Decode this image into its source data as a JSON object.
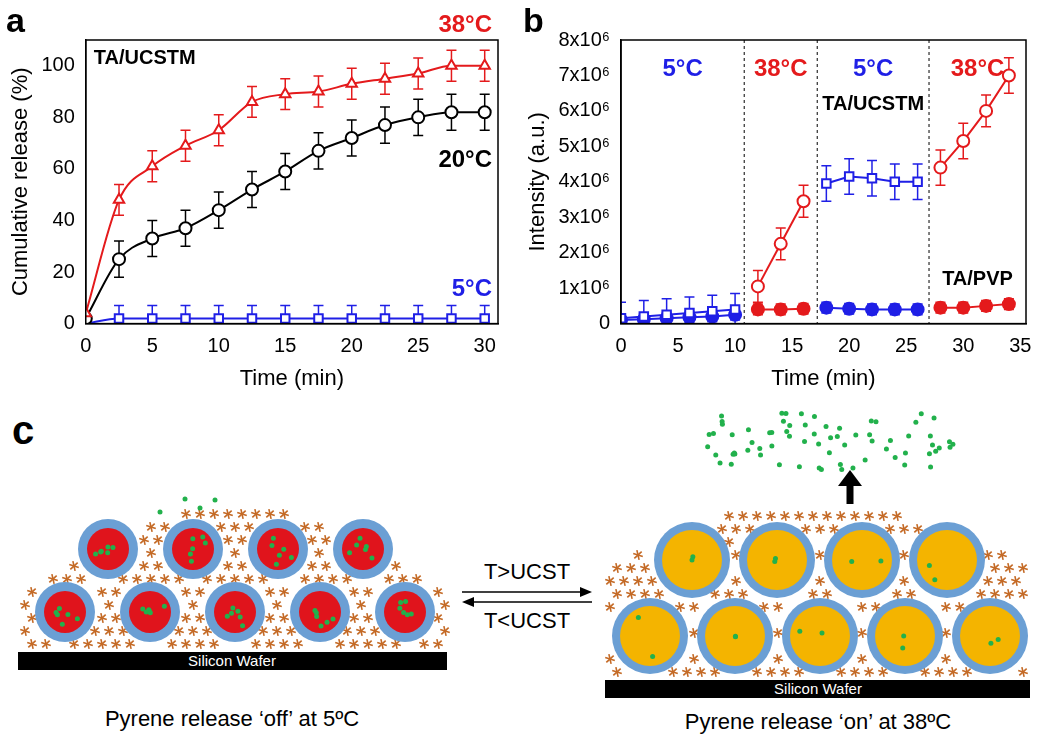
{
  "chart_data": [
    {
      "type": "line",
      "panel": "a",
      "title": "TA/UCSTM",
      "x_label": "Time (min)",
      "y_label": "Cumulative release (%)",
      "xlim": [
        0,
        31
      ],
      "ylim": [
        0,
        110
      ],
      "xticks": [
        0,
        5,
        10,
        15,
        20,
        25,
        30
      ],
      "yticks": [
        0,
        20,
        40,
        60,
        80,
        100
      ],
      "grid": false,
      "x": [
        0,
        2.5,
        5,
        7.5,
        10,
        12.5,
        15,
        17.5,
        20,
        22.5,
        25,
        27.5,
        30
      ],
      "series": [
        {
          "name": "38°C",
          "color": "#e41a1c",
          "marker": "open-triangle",
          "line_style": "smooth",
          "values": [
            4,
            48,
            61,
            69,
            75,
            86,
            89,
            90,
            93,
            95,
            97,
            100,
            100
          ],
          "errors": [
            0,
            6,
            6,
            6,
            6,
            6,
            6,
            6,
            6,
            6,
            6,
            6,
            6
          ]
        },
        {
          "name": "20°C",
          "color": "#000000",
          "marker": "open-circle",
          "line_style": "smooth",
          "values": [
            2,
            25,
            33,
            37,
            44,
            52,
            59,
            67,
            72,
            77,
            80,
            82,
            82
          ],
          "errors": [
            0,
            7,
            7,
            7,
            7,
            7,
            7,
            7,
            7,
            7,
            7,
            7,
            7
          ]
        },
        {
          "name": "5°C",
          "color": "#1f1fe6",
          "marker": "open-square",
          "line_style": "smooth",
          "values": [
            0,
            2,
            2,
            2,
            2,
            2,
            2,
            2,
            2,
            2,
            2,
            2,
            2
          ],
          "errors": [
            0,
            5,
            5,
            5,
            5,
            5,
            5,
            5,
            5,
            5,
            5,
            5,
            5
          ]
        }
      ]
    },
    {
      "type": "line",
      "panel": "b",
      "x_label": "Time (min)",
      "y_label": "Intensity (a.u.)",
      "xlim": [
        0,
        35.5
      ],
      "ylim": [
        0,
        8000000
      ],
      "xticks": [
        0,
        5,
        10,
        15,
        20,
        25,
        30,
        35
      ],
      "yticks": [
        0,
        {
          "value": 1000000,
          "label": "1x10⁶"
        },
        {
          "value": 2000000,
          "label": "2x10⁶"
        },
        {
          "value": 3000000,
          "label": "3x10⁶"
        },
        {
          "value": 4000000,
          "label": "4x10⁶"
        },
        {
          "value": 5000000,
          "label": "5x10⁶"
        },
        {
          "value": 6000000,
          "label": "6x10⁶"
        },
        {
          "value": 7000000,
          "label": "7x10⁶"
        },
        {
          "value": 8000000,
          "label": "8x10⁶"
        }
      ],
      "grid": false,
      "phases": [
        {
          "label": "5°C",
          "color": "#1f1fe6",
          "end": 10.8
        },
        {
          "label": "38°C",
          "color": "#e41a1c",
          "end": 17.2
        },
        {
          "label": "5°C",
          "color": "#1f1fe6",
          "end": 27
        },
        {
          "label": "38°C",
          "color": "#e41a1c",
          "end": 35.5
        }
      ],
      "series": [
        {
          "name": "TA/UCSTM",
          "color": "#1f1fe6",
          "marker": "open-square",
          "line_style": "solid",
          "x": [
            0,
            2,
            4,
            6,
            8,
            10
          ],
          "values": [
            150000,
            200000,
            250000,
            300000,
            350000,
            400000
          ],
          "errors": [
            450000,
            450000,
            450000,
            450000,
            450000,
            450000
          ]
        },
        {
          "name": "TA/UCSTM",
          "color": "#e41a1c",
          "marker": "open-circle",
          "line_style": "solid",
          "x": [
            12,
            14,
            16
          ],
          "values": [
            1050000,
            2250000,
            3450000
          ],
          "errors": [
            450000,
            450000,
            450000
          ]
        },
        {
          "name": "TA/UCSTM",
          "color": "#1f1fe6",
          "marker": "open-square",
          "line_style": "solid",
          "x": [
            18,
            20,
            22,
            24,
            26
          ],
          "values": [
            3950000,
            4150000,
            4100000,
            4000000,
            4000000
          ],
          "errors": [
            500000,
            500000,
            500000,
            500000,
            500000
          ]
        },
        {
          "name": "TA/UCSTM",
          "color": "#e41a1c",
          "marker": "open-circle",
          "line_style": "solid",
          "x": [
            28,
            30,
            32,
            34
          ],
          "values": [
            4400000,
            5150000,
            6000000,
            7000000
          ],
          "errors": [
            500000,
            500000,
            450000,
            500000
          ]
        },
        {
          "name": "TA/PVP",
          "color": "#1f1fe6",
          "marker": "filled-circle",
          "line_style": "solid",
          "x": [
            0,
            2,
            4,
            6,
            8,
            10
          ],
          "values": [
            100000,
            120000,
            150000,
            180000,
            200000,
            250000
          ],
          "errors": [
            150000,
            150000,
            150000,
            150000,
            150000,
            150000
          ]
        },
        {
          "name": "TA/PVP",
          "color": "#e41a1c",
          "marker": "filled-circle",
          "line_style": "solid",
          "x": [
            12,
            14,
            16
          ],
          "values": [
            400000,
            400000,
            420000
          ],
          "errors": [
            150000,
            150000,
            150000
          ]
        },
        {
          "name": "TA/PVP",
          "color": "#1f1fe6",
          "marker": "filled-circle",
          "line_style": "solid",
          "x": [
            18,
            20,
            22,
            24,
            26
          ],
          "values": [
            450000,
            420000,
            400000,
            400000,
            400000
          ],
          "errors": [
            150000,
            150000,
            150000,
            150000,
            150000
          ]
        },
        {
          "name": "TA/PVP",
          "color": "#e41a1c",
          "marker": "filled-circle",
          "line_style": "solid",
          "x": [
            28,
            30,
            32,
            34
          ],
          "values": [
            450000,
            450000,
            500000,
            550000
          ],
          "errors": [
            150000,
            150000,
            150000,
            150000
          ]
        }
      ]
    }
  ],
  "diagram": {
    "panel": "c",
    "left": {
      "substrate": "Silicon Wafer",
      "caption": "Pyrene release ‘off’ at 5ºC"
    },
    "right": {
      "substrate": "Silicon Wafer",
      "caption": "Pyrene release ‘on’ at 38ºC"
    },
    "transition": {
      "forward": "T>UCST",
      "reverse": "T<UCST"
    }
  }
}
